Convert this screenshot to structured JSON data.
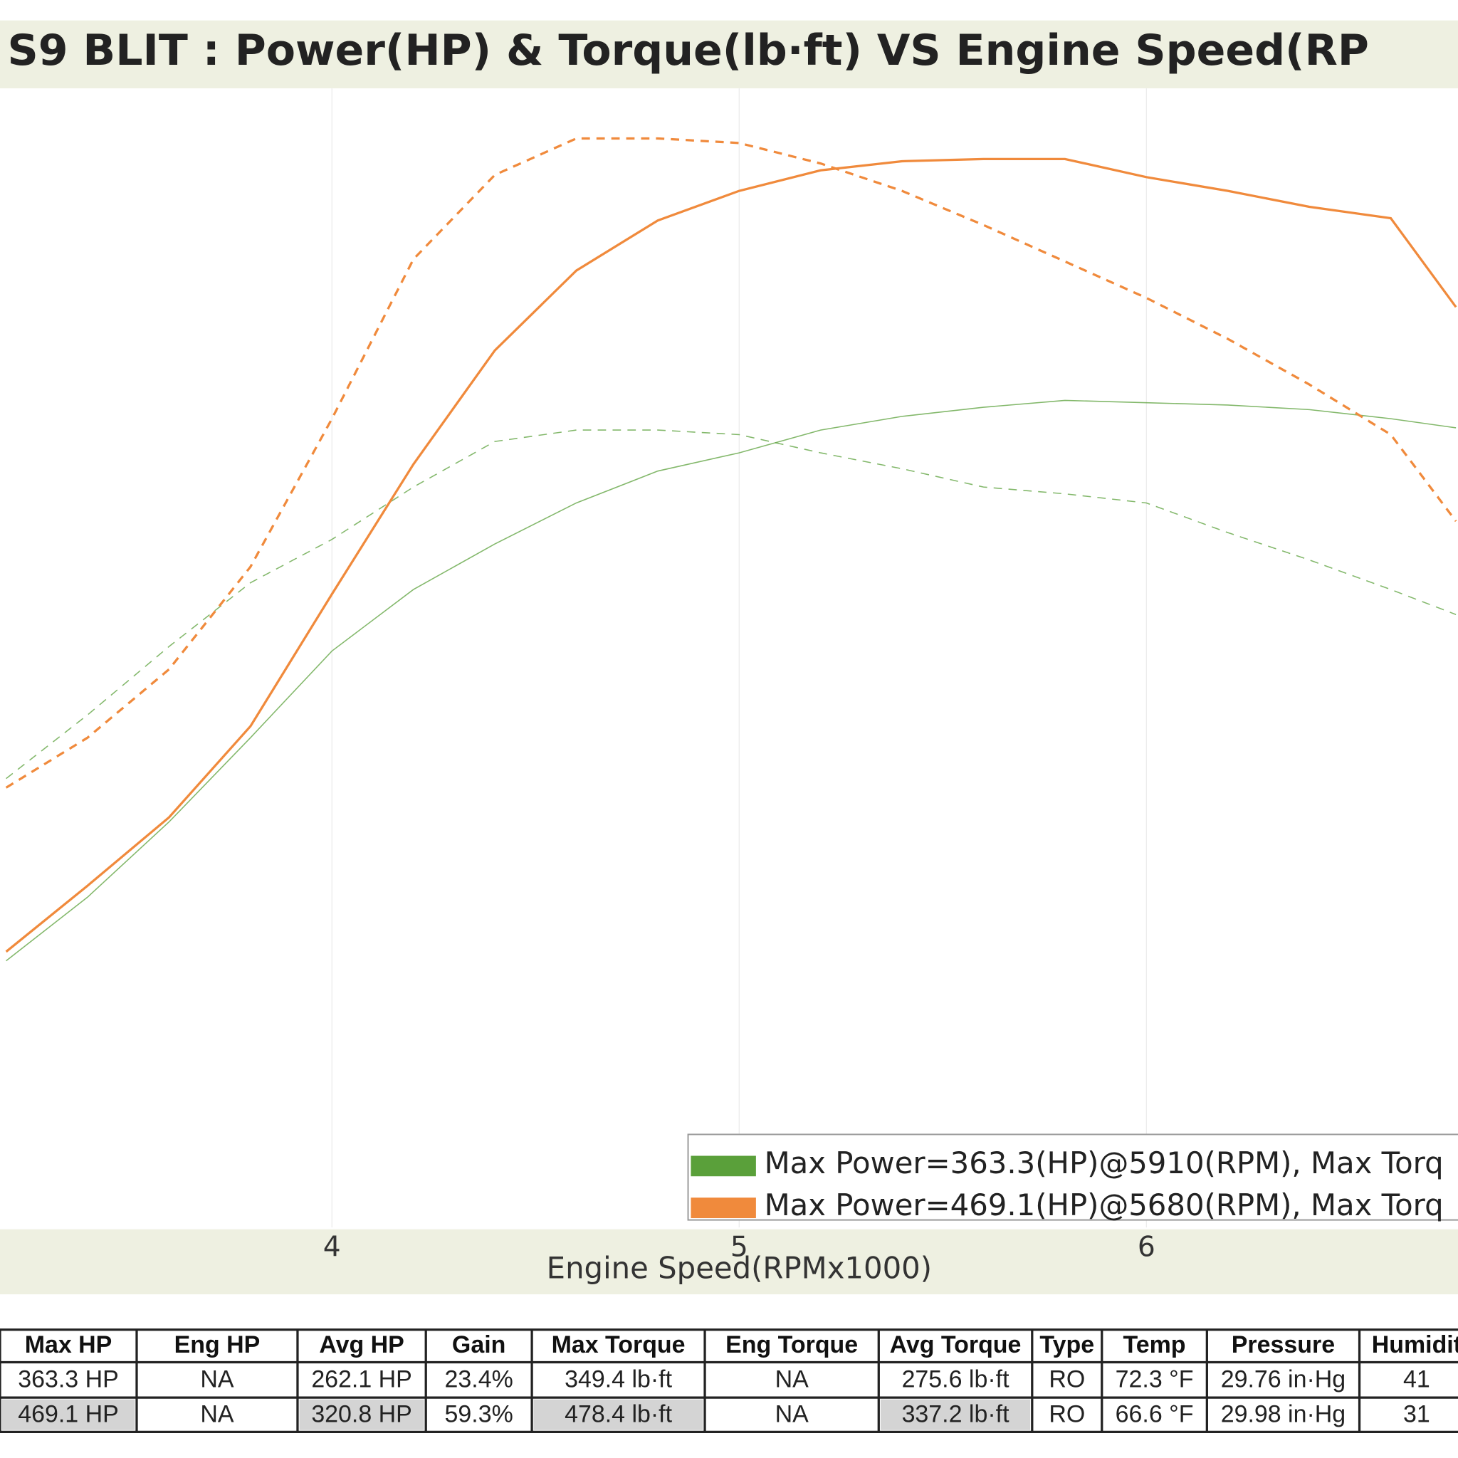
{
  "chart_data": {
    "type": "line",
    "title": "S9 BLIT : Power(HP) & Torque(lb·ft) VS Engine Speed(RP",
    "xlabel": "Engine Speed(RPMx1000)",
    "xlim": [
      3.185,
      6.765
    ],
    "xticks": [
      4,
      5,
      6
    ],
    "ylim": [
      0,
      500
    ],
    "grid": true,
    "x": [
      3.2,
      3.4,
      3.6,
      3.8,
      4.0,
      4.2,
      4.4,
      4.6,
      4.8,
      5.0,
      5.2,
      5.4,
      5.6,
      5.8,
      6.0,
      6.2,
      6.4,
      6.6,
      6.76
    ],
    "series": [
      {
        "name": "Max Power=363.3(HP)@5910(RPM), Max Torq",
        "color": "#5aa03a",
        "values": [
          117,
          145,
          178,
          215,
          253,
          280,
          300,
          318,
          332,
          340,
          350,
          356,
          360,
          363,
          362,
          361,
          359,
          355,
          351
        ],
        "torque": [
          197,
          225,
          255,
          283,
          302,
          325,
          345,
          350,
          350,
          348,
          340,
          333,
          325,
          322,
          318,
          305,
          293,
          280,
          269
        ]
      },
      {
        "name": "Max Power=469.1(HP)@5680(RPM), Max Torq",
        "color": "#f08a3c",
        "values": [
          121,
          150,
          180,
          220,
          278,
          335,
          385,
          420,
          442,
          455,
          464,
          468,
          469,
          469,
          461,
          455,
          448,
          443,
          404
        ],
        "torque": [
          193,
          215,
          245,
          290,
          355,
          425,
          462,
          478,
          478,
          476,
          467,
          455,
          440,
          424,
          408,
          390,
          370,
          348,
          310
        ]
      }
    ]
  },
  "table": {
    "header": [
      "Max HP",
      "Eng HP",
      "Avg HP",
      "Gain",
      "Max Torque",
      "Eng Torque",
      "Avg Torque",
      "Type",
      "Temp",
      "Pressure",
      "Humidit"
    ],
    "rows": [
      [
        "363.3 HP",
        "NA",
        "262.1 HP",
        "23.4%",
        "349.4 lb·ft",
        "NA",
        "275.6 lb·ft",
        "RO",
        "72.3 °F",
        "29.76 in·Hg",
        "41"
      ],
      [
        "469.1 HP",
        "NA",
        "320.8 HP",
        "59.3%",
        "478.4 lb·ft",
        "NA",
        "337.2 lb·ft",
        "RO",
        "66.6 °F",
        "29.98 in·Hg",
        "31"
      ]
    ]
  }
}
